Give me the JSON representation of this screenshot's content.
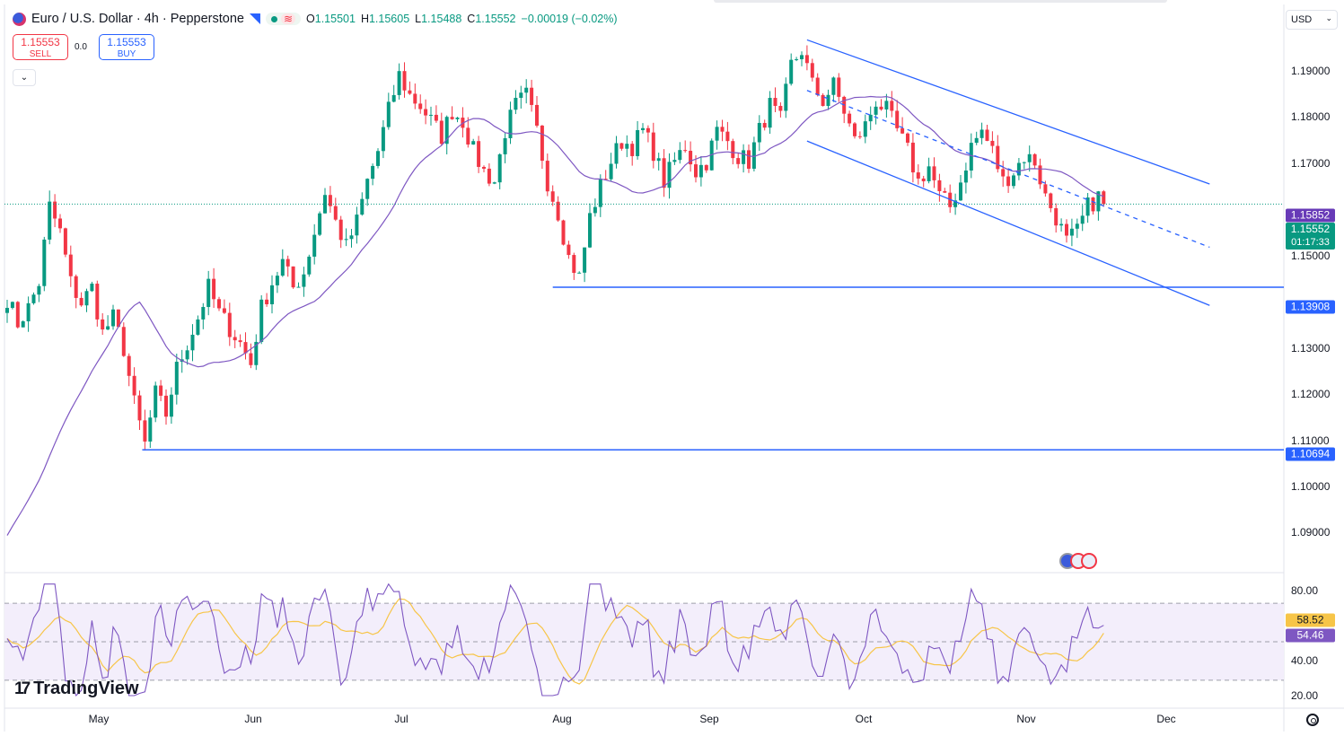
{
  "header": {
    "symbol": "Euro / U.S. Dollar · 4h · Pepperstone",
    "icons": [
      "eurusd-flag-icon",
      "market-closed-icon",
      "status-dot-icon",
      "indicator-wave-icon"
    ],
    "ohlc": {
      "open_label": "O",
      "open": "1.15501",
      "high_label": "H",
      "high": "1.15605",
      "low_label": "L",
      "low": "1.15488",
      "close_label": "C",
      "close": "1.15552",
      "change": "−0.00019 (−0.02%)"
    }
  },
  "trade": {
    "sell_price": "1.15553",
    "sell_label": "SELL",
    "spread": "0.0",
    "buy_price": "1.15553",
    "buy_label": "BUY",
    "collapse_icon": "chevron-down-icon"
  },
  "currency": {
    "value": "USD"
  },
  "price_axis": {
    "ticks": [
      "1.19000",
      "1.18000",
      "1.17000",
      "1.15000",
      "1.13000",
      "1.12000",
      "1.11000",
      "1.10000",
      "1.09000"
    ],
    "tags": {
      "ma": "1.15852",
      "current_price": "1.15552",
      "countdown": "01:17:33",
      "level_high": "1.13908",
      "level_low": "1.10694"
    }
  },
  "rsi_axis": {
    "ticks": [
      "80.00",
      "40.00",
      "20.00"
    ],
    "tags": {
      "rsi": "58.52",
      "rsi_ma": "54.46"
    }
  },
  "time_axis": [
    "May",
    "Jun",
    "Jul",
    "Aug",
    "Sep",
    "Oct",
    "Nov",
    "Dec"
  ],
  "branding": {
    "logo_text": "TradingView"
  },
  "colors": {
    "up": "#089981",
    "down": "#f23645",
    "accent": "#2962ff",
    "ma_line": "#7e57c2",
    "rsi_line": "#7e57c2",
    "rsi_ma": "#f7c548",
    "rsi_band": "#f3eefb"
  },
  "chart_data": {
    "type": "candlestick",
    "timeframe": "4h",
    "ylim": [
      1.083,
      1.195
    ],
    "price_path": [
      [
        0,
        1.137
      ],
      [
        2,
        1.132
      ],
      [
        4,
        1.135
      ],
      [
        6,
        1.14
      ],
      [
        8,
        1.155
      ],
      [
        10,
        1.15
      ],
      [
        12,
        1.14
      ],
      [
        14,
        1.136
      ],
      [
        16,
        1.139
      ],
      [
        18,
        1.13
      ],
      [
        20,
        1.133
      ],
      [
        22,
        1.127
      ],
      [
        24,
        1.116
      ],
      [
        26,
        1.108
      ],
      [
        28,
        1.118
      ],
      [
        30,
        1.114
      ],
      [
        32,
        1.123
      ],
      [
        34,
        1.128
      ],
      [
        36,
        1.133
      ],
      [
        38,
        1.139
      ],
      [
        40,
        1.134
      ],
      [
        42,
        1.131
      ],
      [
        44,
        1.128
      ],
      [
        46,
        1.124
      ],
      [
        48,
        1.135
      ],
      [
        50,
        1.14
      ],
      [
        52,
        1.144
      ],
      [
        54,
        1.139
      ],
      [
        56,
        1.142
      ],
      [
        58,
        1.15
      ],
      [
        60,
        1.158
      ],
      [
        62,
        1.152
      ],
      [
        64,
        1.147
      ],
      [
        66,
        1.152
      ],
      [
        68,
        1.16
      ],
      [
        70,
        1.166
      ],
      [
        72,
        1.174
      ],
      [
        74,
        1.181
      ],
      [
        76,
        1.177
      ],
      [
        78,
        1.175
      ],
      [
        80,
        1.172
      ],
      [
        82,
        1.169
      ],
      [
        84,
        1.174
      ],
      [
        86,
        1.172
      ],
      [
        88,
        1.166
      ],
      [
        90,
        1.162
      ],
      [
        92,
        1.16
      ],
      [
        94,
        1.17
      ],
      [
        96,
        1.175
      ],
      [
        98,
        1.177
      ],
      [
        100,
        1.17
      ],
      [
        102,
        1.16
      ],
      [
        104,
        1.154
      ],
      [
        106,
        1.145
      ],
      [
        108,
        1.141
      ],
      [
        110,
        1.153
      ],
      [
        112,
        1.159
      ],
      [
        114,
        1.164
      ],
      [
        116,
        1.168
      ],
      [
        118,
        1.167
      ],
      [
        120,
        1.17
      ],
      [
        122,
        1.166
      ],
      [
        124,
        1.16
      ],
      [
        126,
        1.164
      ],
      [
        128,
        1.167
      ],
      [
        130,
        1.162
      ],
      [
        132,
        1.164
      ],
      [
        134,
        1.17
      ],
      [
        136,
        1.168
      ],
      [
        138,
        1.165
      ],
      [
        140,
        1.164
      ],
      [
        142,
        1.17
      ],
      [
        144,
        1.175
      ],
      [
        146,
        1.172
      ],
      [
        148,
        1.183
      ],
      [
        150,
        1.186
      ],
      [
        152,
        1.179
      ],
      [
        154,
        1.176
      ],
      [
        156,
        1.179
      ],
      [
        158,
        1.174
      ],
      [
        160,
        1.168
      ],
      [
        162,
        1.171
      ],
      [
        164,
        1.176
      ],
      [
        166,
        1.174
      ],
      [
        168,
        1.17
      ],
      [
        170,
        1.166
      ],
      [
        172,
        1.16
      ],
      [
        174,
        1.163
      ],
      [
        176,
        1.157
      ],
      [
        178,
        1.155
      ],
      [
        180,
        1.16
      ],
      [
        182,
        1.167
      ],
      [
        184,
        1.17
      ],
      [
        186,
        1.166
      ],
      [
        188,
        1.16
      ],
      [
        190,
        1.162
      ],
      [
        192,
        1.165
      ],
      [
        194,
        1.164
      ],
      [
        196,
        1.157
      ],
      [
        198,
        1.153
      ],
      [
        200,
        1.148
      ],
      [
        202,
        1.15
      ],
      [
        204,
        1.155
      ],
      [
        206,
        1.157
      ],
      [
        207,
        1.1555
      ]
    ],
    "horizontal_levels": [
      1.13908,
      1.10694
    ],
    "channel": {
      "upper": [
        [
          151,
          1.188
        ],
        [
          227,
          1.1595
        ]
      ],
      "lower": [
        [
          151,
          1.168
        ],
        [
          227,
          1.1355
        ]
      ],
      "mid_dashed": [
        [
          151,
          1.178
        ],
        [
          227,
          1.147
        ]
      ]
    },
    "moving_average_last": 1.15852,
    "current_price": 1.15552,
    "rsi": {
      "ylim": [
        15,
        85
      ],
      "upper_band": 70,
      "mid": 50,
      "lower_band": 30,
      "last": 58.52,
      "ma_last": 54.46
    }
  }
}
